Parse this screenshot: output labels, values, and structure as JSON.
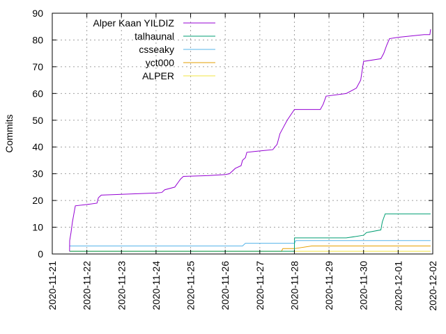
{
  "chart_data": {
    "type": "line",
    "xlabel": "",
    "ylabel": "Commits",
    "ylim": [
      0,
      90
    ],
    "yticks": [
      0,
      10,
      20,
      30,
      40,
      50,
      60,
      70,
      80,
      90
    ],
    "xlim": [
      "2020-11-21",
      "2020-12-02"
    ],
    "xticks": [
      "2020-11-21",
      "2020-11-22",
      "2020-11-23",
      "2020-11-24",
      "2020-11-25",
      "2020-11-26",
      "2020-11-27",
      "2020-11-28",
      "2020-11-29",
      "2020-11-30",
      "2020-12-01",
      "2020-12-02"
    ],
    "grid": true,
    "legend_position": "top-left",
    "series": [
      {
        "name": "Alper Kaan YILDIZ",
        "color": "#9400d3",
        "points": [
          [
            "2020-11-21 12:00",
            1
          ],
          [
            "2020-11-21 12:05",
            5
          ],
          [
            "2020-11-21 13:00",
            8
          ],
          [
            "2020-11-21 14:00",
            12
          ],
          [
            "2020-11-21 15:00",
            15
          ],
          [
            "2020-11-21 16:00",
            18
          ],
          [
            "2020-11-22 00:00",
            18.5
          ],
          [
            "2020-11-22 07:00",
            19
          ],
          [
            "2020-11-22 08:00",
            21
          ],
          [
            "2020-11-22 10:00",
            22
          ],
          [
            "2020-11-23 00:00",
            22.3
          ],
          [
            "2020-11-24 00:00",
            22.8
          ],
          [
            "2020-11-24 04:00",
            23
          ],
          [
            "2020-11-24 06:00",
            24
          ],
          [
            "2020-11-24 13:00",
            25
          ],
          [
            "2020-11-24 17:00",
            28
          ],
          [
            "2020-11-24 19:00",
            29
          ],
          [
            "2020-11-25 12:00",
            29.3
          ],
          [
            "2020-11-26 00:00",
            29.7
          ],
          [
            "2020-11-26 03:00",
            30
          ],
          [
            "2020-11-26 07:00",
            32
          ],
          [
            "2020-11-26 11:00",
            33
          ],
          [
            "2020-11-26 12:00",
            35
          ],
          [
            "2020-11-26 14:00",
            36
          ],
          [
            "2020-11-26 15:00",
            38
          ],
          [
            "2020-11-26 20:00",
            38.3
          ],
          [
            "2020-11-27 09:00",
            39
          ],
          [
            "2020-11-27 12:00",
            41
          ],
          [
            "2020-11-27 14:00",
            45
          ],
          [
            "2020-11-27 16:00",
            47
          ],
          [
            "2020-11-27 19:00",
            50
          ],
          [
            "2020-11-28 00:00",
            54
          ],
          [
            "2020-11-28 18:00",
            54
          ],
          [
            "2020-11-28 20:00",
            56
          ],
          [
            "2020-11-28 22:00",
            59
          ],
          [
            "2020-11-29 12:00",
            60
          ],
          [
            "2020-11-29 19:00",
            62
          ],
          [
            "2020-11-29 22:00",
            65
          ],
          [
            "2020-11-30 00:00",
            72
          ],
          [
            "2020-11-30 12:00",
            73
          ],
          [
            "2020-11-30 14:00",
            75
          ],
          [
            "2020-11-30 16:00",
            78
          ],
          [
            "2020-11-30 18:00",
            80.5
          ],
          [
            "2020-12-01 00:00",
            81
          ],
          [
            "2020-12-01 18:00",
            82
          ],
          [
            "2020-12-01 22:00",
            82
          ],
          [
            "2020-12-01 22:30",
            84
          ]
        ]
      },
      {
        "name": "talhaunal",
        "color": "#009e73",
        "points": [
          [
            "2020-11-21 12:00",
            1
          ],
          [
            "2020-11-28 00:00",
            1
          ],
          [
            "2020-11-28 00:05",
            6
          ],
          [
            "2020-11-29 12:00",
            6
          ],
          [
            "2020-11-30 00:00",
            7
          ],
          [
            "2020-11-30 02:00",
            8
          ],
          [
            "2020-11-30 12:00",
            9
          ],
          [
            "2020-11-30 13:00",
            12
          ],
          [
            "2020-11-30 15:00",
            15
          ],
          [
            "2020-12-01 22:30",
            15
          ]
        ]
      },
      {
        "name": "csseaky",
        "color": "#56b4e9",
        "points": [
          [
            "2020-11-21 12:00",
            3
          ],
          [
            "2020-11-26 12:00",
            3
          ],
          [
            "2020-11-26 14:00",
            4
          ],
          [
            "2020-11-28 00:00",
            4
          ],
          [
            "2020-11-28 01:00",
            5
          ],
          [
            "2020-12-01 22:30",
            5
          ]
        ]
      },
      {
        "name": "yct000",
        "color": "#e69f00",
        "points": [
          [
            "2020-11-21 12:00",
            1
          ],
          [
            "2020-11-27 15:00",
            1
          ],
          [
            "2020-11-27 16:00",
            2
          ],
          [
            "2020-11-28 00:00",
            2
          ],
          [
            "2020-11-28 12:00",
            3
          ],
          [
            "2020-12-01 22:30",
            3
          ]
        ]
      },
      {
        "name": "ALPER",
        "color": "#f0e442",
        "points": [
          [
            "2020-11-21 12:00",
            1
          ],
          [
            "2020-12-01 22:30",
            1
          ]
        ]
      }
    ]
  }
}
